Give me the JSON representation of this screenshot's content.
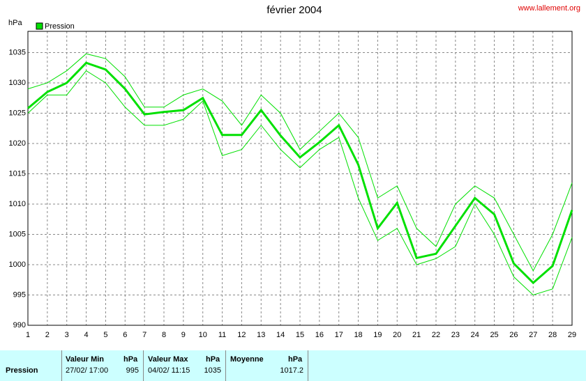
{
  "chart_data": {
    "type": "line",
    "title": "février 2004",
    "source": "www.lallement.org",
    "y_label": "hPa",
    "x": [
      1,
      2,
      3,
      4,
      5,
      6,
      7,
      8,
      9,
      10,
      11,
      12,
      13,
      14,
      15,
      16,
      17,
      18,
      19,
      20,
      21,
      22,
      23,
      24,
      25,
      26,
      27,
      28,
      29
    ],
    "xlim": [
      1,
      29
    ],
    "xticks": [
      1,
      2,
      3,
      4,
      5,
      6,
      7,
      8,
      9,
      10,
      11,
      12,
      13,
      14,
      15,
      16,
      17,
      18,
      19,
      20,
      21,
      22,
      23,
      24,
      25,
      26,
      27,
      28,
      29
    ],
    "ylim": [
      990,
      1038.5
    ],
    "yticks": [
      990,
      995,
      1000,
      1005,
      1010,
      1015,
      1020,
      1025,
      1030,
      1035
    ],
    "grid": true,
    "legend": "top-left",
    "series": [
      {
        "name": "Pression",
        "color": "#00e000",
        "width": 3,
        "values": [
          1025.8,
          1028.5,
          1030.0,
          1033.3,
          1032.2,
          1029.0,
          1024.8,
          1025.2,
          1025.5,
          1027.5,
          1021.4,
          1021.4,
          1025.5,
          1021.3,
          1017.7,
          1020.2,
          1023.0,
          1016.5,
          1006.0,
          1010.2,
          1001.1,
          1001.8,
          1006.4,
          1011.0,
          1008.3,
          1000.2,
          997.0,
          999.8,
          1009.0
        ]
      },
      {
        "color": "#00e000",
        "width": 1,
        "values": [
          1029,
          1030,
          1032,
          1034.8,
          1034,
          1031,
          1026,
          1026,
          1028,
          1029,
          1027,
          1023,
          1028,
          1025,
          1019,
          1022,
          1025,
          1021,
          1011,
          1013,
          1006,
          1003,
          1010,
          1013,
          1011,
          1005,
          999,
          1005,
          1013.5
        ]
      },
      {
        "color": "#00e000",
        "width": 1,
        "values": [
          1025,
          1028,
          1028,
          1032,
          1030,
          1026,
          1023,
          1023,
          1024,
          1027,
          1018,
          1019,
          1023,
          1019,
          1016,
          1019,
          1021,
          1011,
          1004,
          1006,
          1000,
          1001,
          1003,
          1010,
          1005,
          998,
          995,
          996,
          1004.5
        ]
      }
    ]
  },
  "table": {
    "header": [
      "Valeur Min",
      "hPa",
      "Valeur Max",
      "hPa",
      "Moyenne",
      "hPa"
    ],
    "rows": [
      [
        "Pression",
        "27/02/ 17:00",
        "995",
        "04/02/ 11:15",
        "1035",
        "",
        "1017.2"
      ]
    ]
  }
}
